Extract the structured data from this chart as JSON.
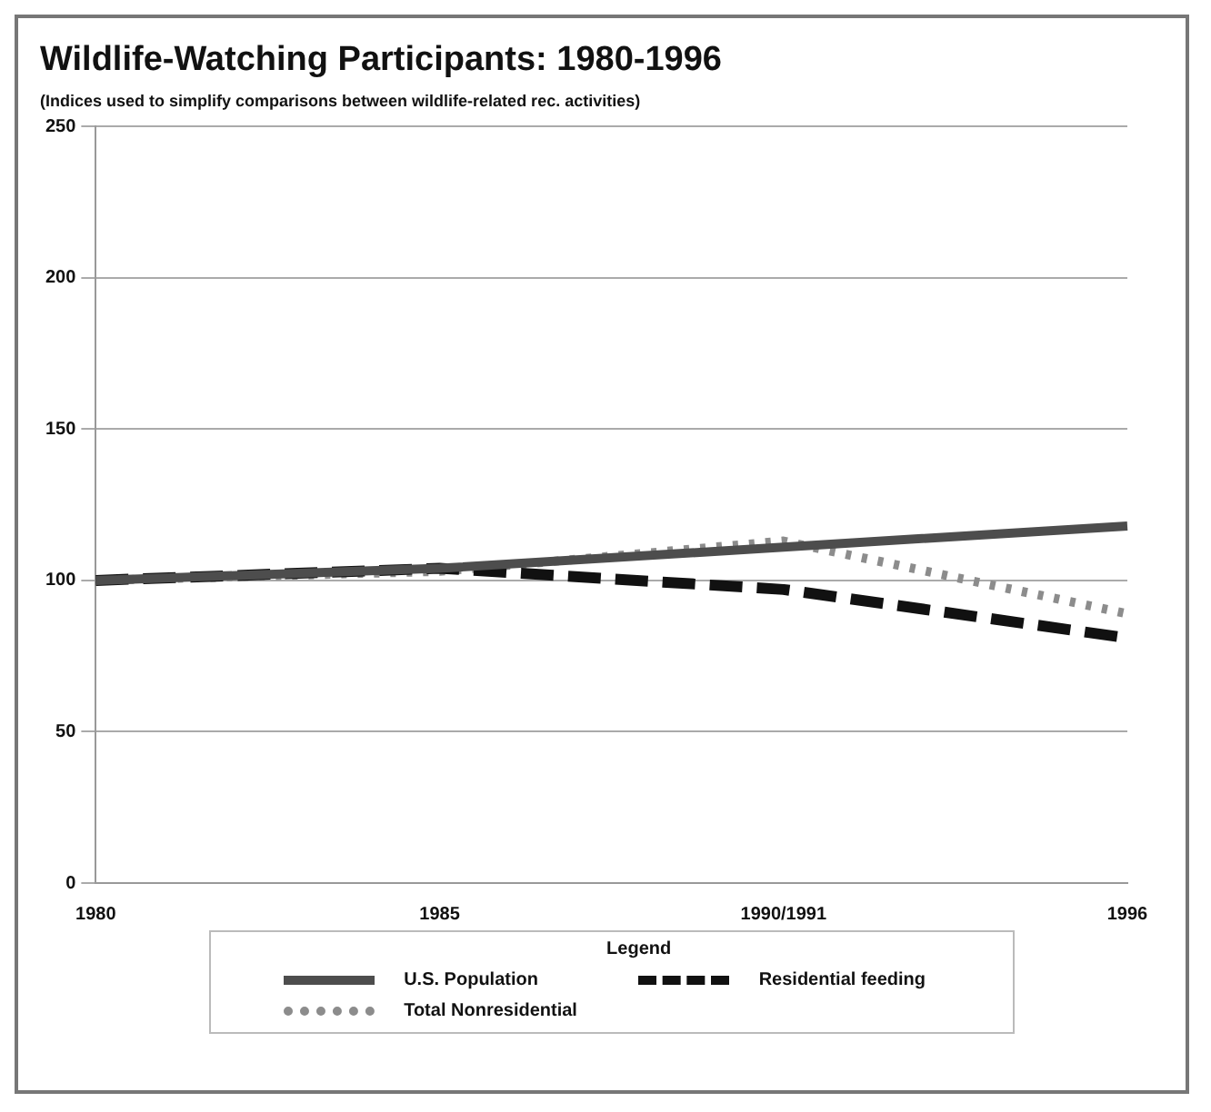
{
  "chart_data": {
    "type": "line",
    "title": "Wildlife-Watching Participants: 1980-1996",
    "subtitle": "(Indices used to simplify comparisons between wildlife-related rec. activities)",
    "legend_title": "Legend",
    "categories": [
      "1980",
      "1985",
      "1990/1991",
      "1996"
    ],
    "series": [
      {
        "name": "U.S. Population",
        "color": "#4d4d4d",
        "values": [
          100,
          104,
          111,
          118
        ],
        "line_style": "solid"
      },
      {
        "name": "Residential feeding",
        "color": "#111111",
        "values": [
          100,
          104,
          97,
          81
        ],
        "line_style": "dashed"
      },
      {
        "name": "Total Nonresidential",
        "color": "#8c8c8c",
        "values": [
          100,
          103,
          113,
          89
        ],
        "line_style": "dotted"
      }
    ],
    "ylim": [
      0,
      250
    ],
    "yticks": [
      0,
      50,
      100,
      150,
      200,
      250
    ],
    "grid": "y",
    "legend": "bottom",
    "marker": "none"
  }
}
